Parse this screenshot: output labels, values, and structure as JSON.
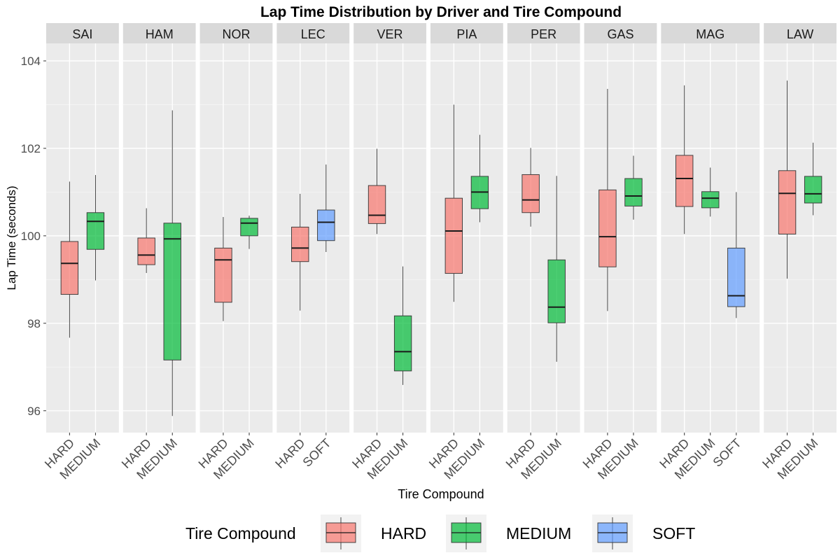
{
  "chart_data": {
    "type": "box",
    "title": "Lap Time Distribution by Driver and Tire Compound",
    "xlabel": "Tire Compound",
    "ylabel": "Lap Time (seconds)",
    "ylim": [
      95.5,
      104.4
    ],
    "yticks": [
      96,
      98,
      100,
      102,
      104
    ],
    "grid": true,
    "legend": {
      "title": "Tire Compound",
      "position": "bottom",
      "entries": [
        {
          "name": "HARD",
          "color": "#F8766D"
        },
        {
          "name": "MEDIUM",
          "color": "#00BA38"
        },
        {
          "name": "SOFT",
          "color": "#619CFF"
        }
      ]
    },
    "facets": [
      {
        "driver": "SAI",
        "boxes": [
          {
            "compound": "HARD",
            "whisker_low": 97.67,
            "q1": 98.66,
            "median": 99.37,
            "q3": 99.87,
            "whisker_high": 101.24
          },
          {
            "compound": "MEDIUM",
            "whisker_low": 98.98,
            "q1": 99.69,
            "median": 100.33,
            "q3": 100.53,
            "whisker_high": 101.39
          }
        ]
      },
      {
        "driver": "HAM",
        "boxes": [
          {
            "compound": "HARD",
            "whisker_low": 99.15,
            "q1": 99.34,
            "median": 99.56,
            "q3": 99.95,
            "whisker_high": 100.63
          },
          {
            "compound": "MEDIUM",
            "whisker_low": 95.88,
            "q1": 97.16,
            "median": 99.93,
            "q3": 100.29,
            "whisker_high": 102.87
          }
        ]
      },
      {
        "driver": "NOR",
        "boxes": [
          {
            "compound": "HARD",
            "whisker_low": 98.05,
            "q1": 98.48,
            "median": 99.45,
            "q3": 99.72,
            "whisker_high": 100.43
          },
          {
            "compound": "MEDIUM",
            "whisker_low": 99.7,
            "q1": 100.0,
            "median": 100.29,
            "q3": 100.4,
            "whisker_high": 100.46
          }
        ]
      },
      {
        "driver": "LEC",
        "boxes": [
          {
            "compound": "HARD",
            "whisker_low": 98.29,
            "q1": 99.41,
            "median": 99.72,
            "q3": 100.2,
            "whisker_high": 100.96
          },
          {
            "compound": "SOFT",
            "whisker_low": 99.63,
            "q1": 99.89,
            "median": 100.31,
            "q3": 100.59,
            "whisker_high": 101.63
          }
        ]
      },
      {
        "driver": "VER",
        "boxes": [
          {
            "compound": "HARD",
            "whisker_low": 100.04,
            "q1": 100.28,
            "median": 100.47,
            "q3": 101.15,
            "whisker_high": 101.99
          },
          {
            "compound": "MEDIUM",
            "whisker_low": 96.59,
            "q1": 96.91,
            "median": 97.35,
            "q3": 98.17,
            "whisker_high": 99.3
          }
        ]
      },
      {
        "driver": "PIA",
        "boxes": [
          {
            "compound": "HARD",
            "whisker_low": 98.49,
            "q1": 99.14,
            "median": 100.11,
            "q3": 100.86,
            "whisker_high": 103.0
          },
          {
            "compound": "MEDIUM",
            "whisker_low": 100.31,
            "q1": 100.62,
            "median": 101.0,
            "q3": 101.36,
            "whisker_high": 102.31
          }
        ]
      },
      {
        "driver": "PER",
        "boxes": [
          {
            "compound": "HARD",
            "whisker_low": 100.21,
            "q1": 100.53,
            "median": 100.82,
            "q3": 101.4,
            "whisker_high": 102.01
          },
          {
            "compound": "MEDIUM",
            "whisker_low": 97.12,
            "q1": 98.01,
            "median": 98.37,
            "q3": 99.45,
            "whisker_high": 101.37
          }
        ]
      },
      {
        "driver": "GAS",
        "boxes": [
          {
            "compound": "HARD",
            "whisker_low": 98.28,
            "q1": 99.29,
            "median": 99.98,
            "q3": 101.05,
            "whisker_high": 103.36
          },
          {
            "compound": "MEDIUM",
            "whisker_low": 100.37,
            "q1": 100.68,
            "median": 100.91,
            "q3": 101.31,
            "whisker_high": 101.83
          }
        ]
      },
      {
        "driver": "MAG",
        "boxes": [
          {
            "compound": "HARD",
            "whisker_low": 100.04,
            "q1": 100.67,
            "median": 101.31,
            "q3": 101.84,
            "whisker_high": 103.44
          },
          {
            "compound": "MEDIUM",
            "whisker_low": 100.44,
            "q1": 100.64,
            "median": 100.86,
            "q3": 101.01,
            "whisker_high": 101.56
          },
          {
            "compound": "SOFT",
            "whisker_low": 98.12,
            "q1": 98.38,
            "median": 98.63,
            "q3": 99.72,
            "whisker_high": 101.0
          }
        ]
      },
      {
        "driver": "LAW",
        "boxes": [
          {
            "compound": "HARD",
            "whisker_low": 99.02,
            "q1": 100.04,
            "median": 100.97,
            "q3": 101.49,
            "whisker_high": 103.55
          },
          {
            "compound": "MEDIUM",
            "whisker_low": 100.47,
            "q1": 100.75,
            "median": 100.96,
            "q3": 101.36,
            "whisker_high": 102.13
          }
        ]
      }
    ]
  }
}
